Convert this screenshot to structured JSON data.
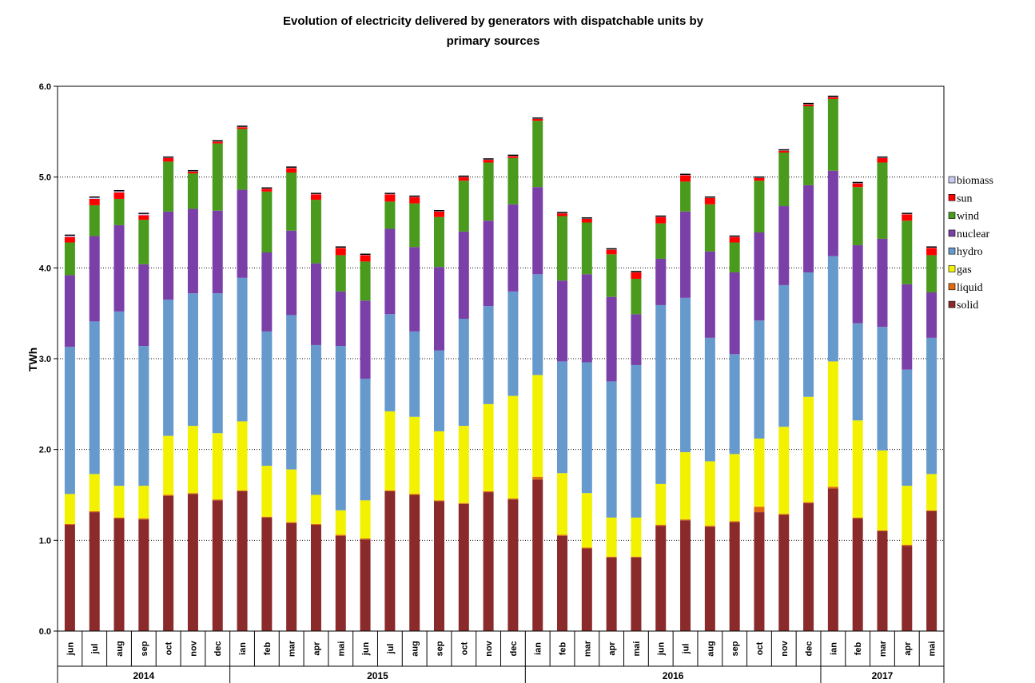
{
  "chart_data": {
    "type": "bar",
    "stacked": true,
    "title_lines": [
      "Evolution of electricity delivered by generators with dispatchable units by",
      "primary sources"
    ],
    "ylabel": "TWh",
    "ylim": [
      0,
      6
    ],
    "yticks": [
      "0.0",
      "1.0",
      "2.0",
      "3.0",
      "4.0",
      "5.0",
      "6.0"
    ],
    "grid": "horizontal dotted",
    "legend_position": "right",
    "categories": [
      "jun",
      "jul",
      "aug",
      "sep",
      "oct",
      "nov",
      "dec",
      "ian",
      "feb",
      "mar",
      "apr",
      "mai",
      "jun",
      "jul",
      "aug",
      "sep",
      "oct",
      "nov",
      "dec",
      "ian",
      "feb",
      "mar",
      "apr",
      "mai",
      "jun",
      "jul",
      "aug",
      "sep",
      "oct",
      "nov",
      "dec",
      "ian",
      "feb",
      "mar",
      "apr",
      "mai"
    ],
    "years": [
      {
        "label": "2014",
        "start": 0,
        "count": 7
      },
      {
        "label": "2015",
        "start": 7,
        "count": 12
      },
      {
        "label": "2016",
        "start": 19,
        "count": 12
      },
      {
        "label": "2017",
        "start": 31,
        "count": 5
      }
    ],
    "series": [
      {
        "name": "solid",
        "color": "#8B2A2A",
        "values": [
          1.17,
          1.31,
          1.24,
          1.23,
          1.49,
          1.51,
          1.44,
          1.54,
          1.25,
          1.19,
          1.17,
          1.05,
          1.01,
          1.54,
          1.5,
          1.43,
          1.4,
          1.53,
          1.45,
          1.67,
          1.05,
          0.91,
          0.81,
          0.81,
          1.16,
          1.22,
          1.15,
          1.2,
          1.31,
          1.28,
          1.41,
          1.57,
          1.24,
          1.1,
          0.94,
          1.32
        ]
      },
      {
        "name": "liquid",
        "color": "#E06A10",
        "values": [
          0.01,
          0.01,
          0.01,
          0.01,
          0.01,
          0.01,
          0.01,
          0.01,
          0.01,
          0.01,
          0.01,
          0.01,
          0.01,
          0.01,
          0.01,
          0.01,
          0.01,
          0.01,
          0.01,
          0.03,
          0.01,
          0.01,
          0.01,
          0.01,
          0.01,
          0.01,
          0.01,
          0.01,
          0.06,
          0.01,
          0.01,
          0.02,
          0.01,
          0.01,
          0.01,
          0.01
        ]
      },
      {
        "name": "gas",
        "color": "#F2F200",
        "values": [
          0.33,
          0.41,
          0.35,
          0.36,
          0.65,
          0.74,
          0.73,
          0.76,
          0.56,
          0.58,
          0.32,
          0.27,
          0.42,
          0.87,
          0.85,
          0.76,
          0.85,
          0.96,
          1.13,
          1.12,
          0.68,
          0.6,
          0.43,
          0.43,
          0.45,
          0.74,
          0.71,
          0.74,
          0.75,
          0.96,
          1.16,
          1.38,
          1.07,
          0.88,
          0.65,
          0.4
        ]
      },
      {
        "name": "hydro",
        "color": "#6699CC",
        "values": [
          1.62,
          1.68,
          1.92,
          1.54,
          1.5,
          1.46,
          1.54,
          1.58,
          1.48,
          1.7,
          1.65,
          1.81,
          1.34,
          1.07,
          0.94,
          0.89,
          1.18,
          1.08,
          1.15,
          1.11,
          1.23,
          1.44,
          1.5,
          1.68,
          1.97,
          1.7,
          1.36,
          1.1,
          1.3,
          1.56,
          1.37,
          1.16,
          1.07,
          1.36,
          1.28,
          1.5
        ]
      },
      {
        "name": "nuclear",
        "color": "#7B3FA8",
        "values": [
          0.79,
          0.94,
          0.95,
          0.9,
          0.97,
          0.93,
          0.91,
          0.97,
          0.87,
          0.93,
          0.9,
          0.6,
          0.86,
          0.94,
          0.93,
          0.92,
          0.96,
          0.94,
          0.96,
          0.96,
          0.89,
          0.97,
          0.93,
          0.56,
          0.51,
          0.95,
          0.95,
          0.9,
          0.97,
          0.87,
          0.96,
          0.94,
          0.86,
          0.97,
          0.94,
          0.5
        ]
      },
      {
        "name": "wind",
        "color": "#4A9A1E",
        "values": [
          0.36,
          0.34,
          0.29,
          0.49,
          0.55,
          0.39,
          0.74,
          0.67,
          0.67,
          0.64,
          0.7,
          0.4,
          0.43,
          0.3,
          0.48,
          0.55,
          0.56,
          0.64,
          0.51,
          0.73,
          0.71,
          0.57,
          0.47,
          0.39,
          0.39,
          0.33,
          0.52,
          0.33,
          0.57,
          0.59,
          0.87,
          0.79,
          0.64,
          0.84,
          0.7,
          0.41
        ]
      },
      {
        "name": "sun",
        "color": "#FF0000",
        "values": [
          0.06,
          0.07,
          0.07,
          0.05,
          0.04,
          0.02,
          0.02,
          0.02,
          0.03,
          0.05,
          0.06,
          0.08,
          0.07,
          0.08,
          0.07,
          0.06,
          0.04,
          0.03,
          0.02,
          0.02,
          0.03,
          0.04,
          0.05,
          0.07,
          0.07,
          0.07,
          0.07,
          0.06,
          0.03,
          0.02,
          0.02,
          0.02,
          0.04,
          0.05,
          0.07,
          0.08
        ]
      },
      {
        "name": "biomass",
        "color": "#C8C8F0",
        "values": [
          0.02,
          0.02,
          0.02,
          0.02,
          0.01,
          0.01,
          0.01,
          0.01,
          0.01,
          0.01,
          0.01,
          0.01,
          0.01,
          0.01,
          0.01,
          0.01,
          0.01,
          0.01,
          0.01,
          0.01,
          0.01,
          0.01,
          0.01,
          0.01,
          0.01,
          0.01,
          0.01,
          0.01,
          0.01,
          0.01,
          0.01,
          0.01,
          0.01,
          0.01,
          0.01,
          0.01
        ]
      }
    ],
    "legend_order": [
      "biomass",
      "sun",
      "wind",
      "nuclear",
      "hydro",
      "gas",
      "liquid",
      "solid"
    ]
  }
}
